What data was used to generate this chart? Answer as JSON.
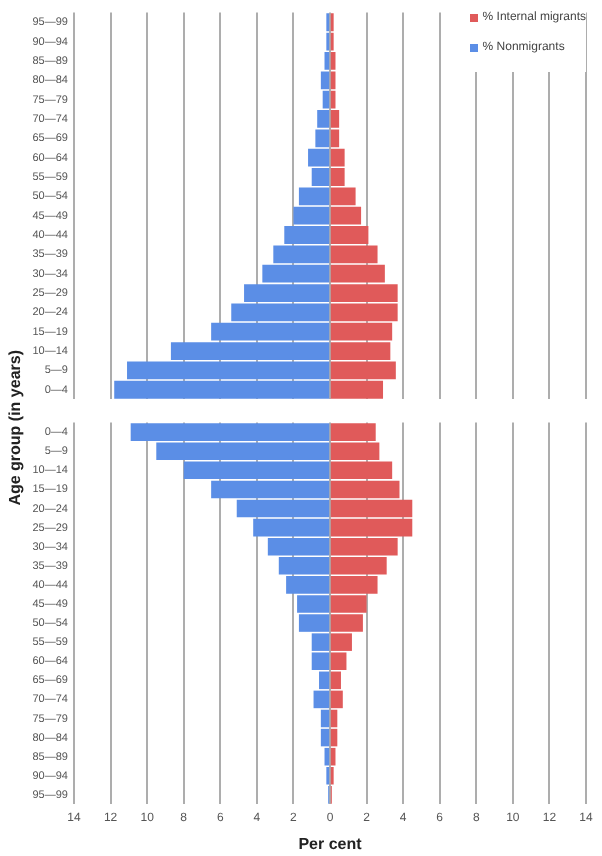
{
  "chart_data": [
    {
      "type": "bar",
      "orientation": "horizontal",
      "stacked": true,
      "ylabel": "Age group (in years)",
      "legend": "top right",
      "grid": "x",
      "tick_labels": "y",
      "categories": [
        "95—99",
        "90—94",
        "85—89",
        "80—84",
        "75—79",
        "70—74",
        "65—69",
        "60—64",
        "55—59",
        "50—54",
        "45—49",
        "40—44",
        "35—39",
        "30—34",
        "25—29",
        "20—24",
        "15—19",
        "10—14",
        "5—9",
        "0—4"
      ],
      "series": [
        {
          "name": "% Internal migrants",
          "color": "#e05a5a",
          "values": [
            0.2,
            0.2,
            0.3,
            0.3,
            0.3,
            0.5,
            0.5,
            0.8,
            0.8,
            1.4,
            1.7,
            2.1,
            2.6,
            3.0,
            3.7,
            3.7,
            3.4,
            3.3,
            3.6,
            2.9
          ]
        },
        {
          "name": "% Nonmigrants",
          "color": "#5b8ee6",
          "values": [
            -0.2,
            -0.2,
            -0.3,
            -0.5,
            -0.4,
            -0.7,
            -0.8,
            -1.2,
            -1.0,
            -1.7,
            -2.0,
            -2.5,
            -3.1,
            -3.7,
            -4.7,
            -5.4,
            -6.5,
            -8.7,
            -11.1,
            -11.8
          ]
        }
      ],
      "xlim": [
        -14,
        14
      ],
      "xticks": [
        -14,
        -12,
        -10,
        -8,
        -6,
        -4,
        -2,
        0,
        2,
        4,
        6,
        8,
        10,
        12,
        14
      ]
    },
    {
      "type": "bar",
      "orientation": "horizontal",
      "stacked": true,
      "xlabel": "Per cent",
      "grid": "x",
      "categories": [
        "0—4",
        "5—9",
        "10—14",
        "15—19",
        "20—24",
        "25—29",
        "30—34",
        "35—39",
        "40—44",
        "45—49",
        "50—54",
        "55—59",
        "60—64",
        "65—69",
        "70—74",
        "75—79",
        "80—84",
        "85—89",
        "90—94",
        "95—99"
      ],
      "series": [
        {
          "color": "#e05a5a",
          "values": [
            2.5,
            2.7,
            3.4,
            3.8,
            4.5,
            4.5,
            3.7,
            3.1,
            2.6,
            2.0,
            1.8,
            1.2,
            0.9,
            0.6,
            0.7,
            0.4,
            0.4,
            0.3,
            0.2,
            0.1
          ]
        },
        {
          "color": "#5b8ee6",
          "values": [
            -10.9,
            -9.5,
            -8.0,
            -6.5,
            -5.1,
            -4.2,
            -3.4,
            -2.8,
            -2.4,
            -1.8,
            -1.7,
            -1.0,
            -1.0,
            -0.6,
            -0.9,
            -0.5,
            -0.5,
            -0.3,
            -0.2,
            -0.1
          ]
        }
      ],
      "xlim": [
        -14,
        14
      ],
      "xticks": [
        {
          "value": -14,
          "label": "14"
        },
        {
          "value": -12,
          "label": "12"
        },
        {
          "value": -10,
          "label": "10"
        },
        {
          "value": -8,
          "label": "8"
        },
        {
          "value": -6,
          "label": "6"
        },
        {
          "value": -4,
          "label": "4"
        },
        {
          "value": -2,
          "label": "2"
        },
        0,
        2,
        4,
        6,
        8,
        10,
        12,
        14
      ]
    }
  ]
}
